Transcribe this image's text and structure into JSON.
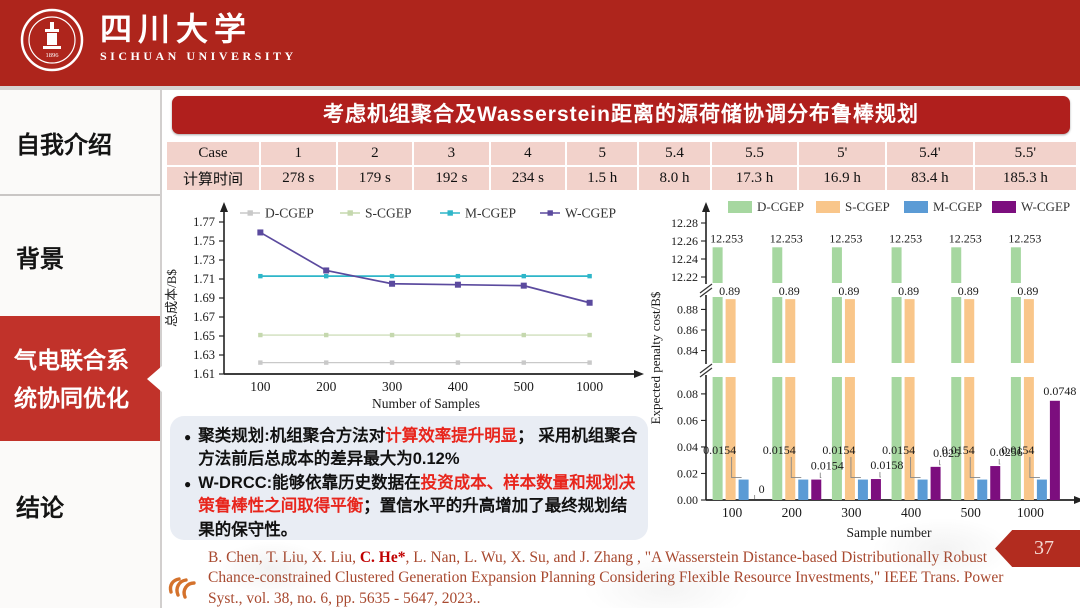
{
  "header": {
    "university_cn": "四川大学",
    "university_en": "SICHUAN UNIVERSITY",
    "seal_year": "1896"
  },
  "sidebar": {
    "items": [
      {
        "label": "自我介绍",
        "active": false
      },
      {
        "label": "背景",
        "active": false
      },
      {
        "label": "气电联合系统协同优化",
        "line1": "气电联合系",
        "line2": "统协同优化",
        "active": true
      },
      {
        "label": "结论",
        "active": false
      }
    ]
  },
  "title": "考虑机组聚合及Wasserstein距离的源荷储协调分布鲁棒规划",
  "table": {
    "rows": [
      [
        "Case",
        "1",
        "2",
        "3",
        "4",
        "5",
        "5.4",
        "5.5",
        "5'",
        "5.4'",
        "5.5'"
      ],
      [
        "计算时间",
        "278 s",
        "179 s",
        "192 s",
        "234 s",
        "1.5 h",
        "8.0 h",
        "17.3 h",
        "16.9 h",
        "83.4 h",
        "185.3 h"
      ]
    ]
  },
  "chart_data": [
    {
      "type": "line",
      "x_categories": [
        "100",
        "200",
        "300",
        "400",
        "500",
        "1000"
      ],
      "xlabel": "Number of Samples",
      "ylabel": "总成本/B$",
      "ylim": [
        1.61,
        1.77
      ],
      "ytick_step": 0.02,
      "legend_position": "top",
      "grid": false,
      "series": [
        {
          "name": "D-CGEP",
          "color": "#c9c9c9",
          "values": [
            1.622,
            1.622,
            1.622,
            1.622,
            1.622,
            1.622
          ]
        },
        {
          "name": "S-CGEP",
          "color": "#c5d8ae",
          "values": [
            1.651,
            1.651,
            1.651,
            1.651,
            1.651,
            1.651
          ]
        },
        {
          "name": "M-CGEP",
          "color": "#2eb6c9",
          "values": [
            1.713,
            1.713,
            1.713,
            1.713,
            1.713,
            1.713
          ]
        },
        {
          "name": "W-CGEP",
          "color": "#5b4a9e",
          "values": [
            1.759,
            1.719,
            1.705,
            1.704,
            1.703,
            1.685
          ]
        }
      ]
    },
    {
      "type": "bar",
      "categories": [
        "100",
        "200",
        "300",
        "400",
        "500",
        "1000"
      ],
      "xlabel": "Sample number",
      "ylabel": "Expected penalty cost/B$",
      "legend_position": "top",
      "axis_breaks": true,
      "bands": [
        {
          "range": [
            12.21,
            12.29
          ],
          "ticks": [
            "12.22",
            "12.24",
            "12.26",
            "12.28"
          ]
        },
        {
          "range": [
            0.825,
            0.895
          ],
          "ticks": [
            "0.84",
            "0.86",
            "0.88"
          ]
        },
        {
          "range": [
            0,
            0.095
          ],
          "ticks": [
            "0.00",
            "0.02",
            "0.04",
            "0.06",
            "0.08"
          ]
        }
      ],
      "series": [
        {
          "name": "D-CGEP",
          "color": "#a6d7a0",
          "values": [
            12.253,
            12.253,
            12.253,
            12.253,
            12.253,
            12.253
          ],
          "labels": [
            "12.253",
            "12.253",
            "12.253",
            "12.253",
            "12.253",
            "12.253"
          ]
        },
        {
          "name": "S-CGEP",
          "color": "#f9c68a",
          "values": [
            0.89,
            0.89,
            0.89,
            0.89,
            0.89,
            0.89
          ],
          "labels": [
            "0.89",
            "0.89",
            "0.89",
            "0.89",
            "0.89",
            "0.89"
          ]
        },
        {
          "name": "M-CGEP",
          "color": "#5b9bd5",
          "values": [
            0.0154,
            0.0154,
            0.0154,
            0.0154,
            0.0154,
            0.0154
          ],
          "labels": [
            "0.0154",
            "0.0154",
            "0.0154",
            "0.0154",
            "0.0154",
            "0.0154"
          ]
        },
        {
          "name": "W-CGEP",
          "color": "#7c0e7e",
          "values": [
            0,
            0.0154,
            0.0158,
            0.025,
            0.0256,
            0.0748
          ],
          "labels": [
            "0",
            "0.0154",
            "0.0158",
            "0.025",
            "0.0256",
            "0.0748"
          ]
        }
      ]
    }
  ],
  "bullets": [
    {
      "segments": [
        {
          "text": "聚类规划:机组聚合方法对",
          "red": false
        },
        {
          "text": "计算效率提升明显",
          "red": true
        },
        {
          "text": "； 采用机组聚合方法前后总成本的差异最大为0.12%",
          "red": false
        }
      ]
    },
    {
      "segments": [
        {
          "text": "W-DRCC:能够依靠历史数据在",
          "red": false
        },
        {
          "text": "投资成本、样本数量和规划决策鲁棒性之间取得平衡",
          "red": true
        },
        {
          "text": "；置信水平的升高增加了最终规划结果的保守性。",
          "red": false
        }
      ]
    }
  ],
  "citation": {
    "segments": [
      {
        "text": "B. Chen, T. Liu, X. Liu, ",
        "em": false
      },
      {
        "text": "C. He*",
        "em": true
      },
      {
        "text": ", L. Nan, L. Wu, X. Su, and J. Zhang , \"A Wasserstein Distance-based Distributionally Robust Chance-constrained Clustered Generation Expansion Planning Considering Flexible Resource Investments,\" IEEE Trans. Power Syst., vol. 38, no. 6, pp. 5635 - 5647, 2023..",
        "em": false
      }
    ]
  },
  "page_number": "37"
}
